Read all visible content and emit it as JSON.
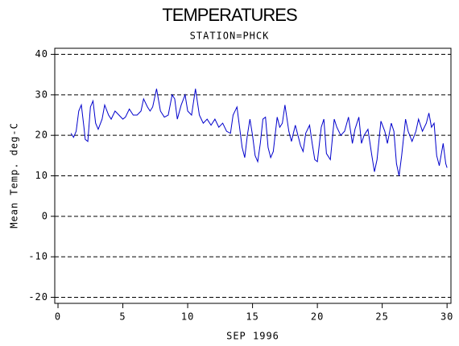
{
  "chart_data": {
    "type": "line",
    "title": "TEMPERATURES",
    "subtitle": "STATION=PHCK",
    "xlabel": "SEP 1996",
    "ylabel": "Mean Temp. deg-C",
    "x": [
      1.0,
      1.2,
      1.4,
      1.6,
      1.8,
      2.0,
      2.1,
      2.3,
      2.5,
      2.7,
      2.9,
      3.1,
      3.4,
      3.6,
      3.9,
      4.1,
      4.4,
      4.7,
      5.0,
      5.2,
      5.5,
      5.8,
      6.1,
      6.4,
      6.6,
      6.9,
      7.1,
      7.3,
      7.6,
      7.9,
      8.2,
      8.5,
      8.8,
      9.0,
      9.2,
      9.5,
      9.8,
      10.0,
      10.3,
      10.6,
      10.9,
      11.2,
      11.5,
      11.8,
      12.1,
      12.4,
      12.7,
      13.0,
      13.3,
      13.5,
      13.8,
      14.0,
      14.2,
      14.4,
      14.6,
      14.8,
      15.0,
      15.2,
      15.4,
      15.6,
      15.8,
      16.0,
      16.2,
      16.4,
      16.6,
      16.9,
      17.1,
      17.3,
      17.5,
      17.8,
      18.0,
      18.3,
      18.5,
      18.7,
      18.9,
      19.1,
      19.4,
      19.6,
      19.8,
      20.0,
      20.3,
      20.5,
      20.7,
      21.0,
      21.3,
      21.5,
      21.8,
      22.1,
      22.4,
      22.7,
      22.9,
      23.2,
      23.4,
      23.6,
      23.9,
      24.2,
      24.4,
      24.6,
      24.9,
      25.2,
      25.4,
      25.7,
      25.9,
      26.1,
      26.3,
      26.5,
      26.8,
      27.0,
      27.3,
      27.6,
      27.8,
      28.1,
      28.4,
      28.6,
      28.8,
      29.0,
      29.2,
      29.4,
      29.7,
      29.9,
      30.0
    ],
    "series": [
      {
        "name": "Mean Temp",
        "color": "#0000cc",
        "values": [
          20.5,
          19.5,
          21,
          26,
          27.5,
          22,
          19,
          18.5,
          27,
          28.5,
          23,
          21.5,
          24,
          27.5,
          25,
          24,
          26,
          25,
          24,
          24.5,
          26.5,
          25,
          25,
          26,
          29,
          27,
          26,
          27,
          31.5,
          26,
          24.5,
          25,
          30,
          29,
          24,
          27.5,
          30,
          26,
          25,
          31.5,
          25,
          23,
          24,
          22.5,
          24,
          22,
          23,
          21,
          20.5,
          25,
          27,
          22,
          17,
          14.5,
          20,
          24,
          20,
          15,
          13.5,
          18,
          24,
          24.5,
          17,
          14.5,
          16,
          24.5,
          22,
          23,
          27.5,
          21,
          18.5,
          22.5,
          20,
          17.5,
          16,
          20.5,
          22.5,
          18,
          14,
          13.5,
          22,
          24,
          15.5,
          14,
          24,
          22,
          20,
          21,
          24.5,
          18,
          21.5,
          24.5,
          18,
          20,
          21.5,
          15,
          11,
          14,
          23.5,
          21,
          18,
          23,
          21,
          13,
          10,
          15,
          24,
          21,
          18.5,
          21,
          24,
          21,
          23,
          25.5,
          22,
          23,
          15,
          12.5,
          18,
          13,
          12
        ]
      }
    ],
    "xlim": [
      -0.25,
      30.3
    ],
    "ylim": [
      -21.5,
      41.5
    ],
    "xticks": [
      0,
      5,
      10,
      15,
      20,
      25,
      30
    ],
    "yticks": [
      -20,
      -10,
      0,
      10,
      20,
      30,
      40
    ],
    "grid": true
  }
}
